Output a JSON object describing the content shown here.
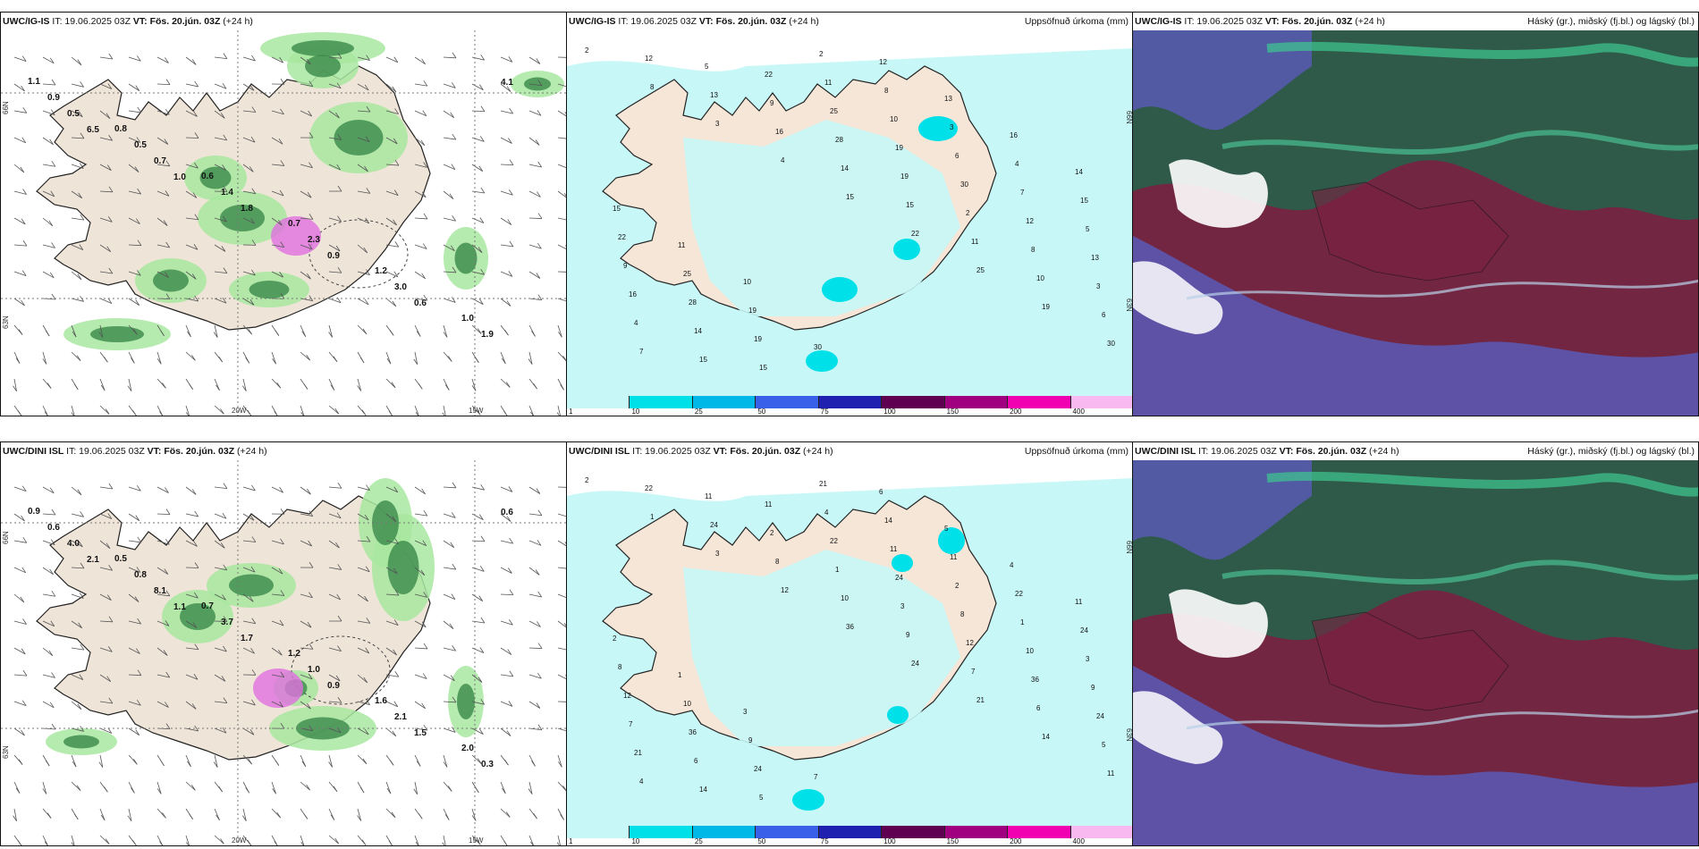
{
  "panels": [
    {
      "model": "UWC/IG-IS",
      "it": "IT: 19.06.2025 03Z",
      "vt": "VT: Fös. 20.jún. 03Z",
      "lead": "(+24 h)",
      "title": "",
      "type": "wind"
    },
    {
      "model": "UWC/IG-IS",
      "it": "IT: 19.06.2025 03Z",
      "vt": "VT: Fös. 20.jún. 03Z",
      "lead": "(+24 h)",
      "title": "Uppsöfnuð úrkoma (mm)",
      "type": "precip"
    },
    {
      "model": "UWC/IG-IS",
      "it": "IT: 19.06.2025 03Z",
      "vt": "VT: Fös. 20.jún. 03Z",
      "lead": "(+24 h)",
      "title": "Háský (gr.), miðský (fj.bl.) og lágský (bl.)",
      "type": "cloud"
    },
    {
      "model": "UWC/DINI ISL",
      "it": "IT: 19.06.2025 03Z",
      "vt": "VT: Fös. 20.jún. 03Z",
      "lead": "(+24 h)",
      "title": "",
      "type": "wind"
    },
    {
      "model": "UWC/DINI ISL",
      "it": "IT: 19.06.2025 03Z",
      "vt": "VT: Fös. 20.jún. 03Z",
      "lead": "(+24 h)",
      "title": "Uppsöfnuð úrkoma (mm)",
      "type": "precip"
    },
    {
      "model": "UWC/DINI ISL",
      "it": "IT: 19.06.2025 03Z",
      "vt": "VT: Fös. 20.jún. 03Z",
      "lead": "(+24 h)",
      "title": "Háský (gr.), miðský (fj.bl.) og lágský (bl.)",
      "type": "cloud"
    }
  ],
  "axis_labels": {
    "lat_top": "66N",
    "lat_bottom": "63N",
    "lon_left": "20W",
    "lon_right": "15W"
  },
  "colorbar": {
    "labels": [
      "1",
      "10",
      "25",
      "50",
      "75",
      "100",
      "150",
      "200",
      "400"
    ],
    "colors": [
      "#c8f7f7",
      "#00e0e8",
      "#00b8e8",
      "#3860e8",
      "#2020b0",
      "#600050",
      "#a00080",
      "#f000b0",
      "#f8b8f0"
    ]
  },
  "precip_values_top": [
    "2",
    "8",
    "3",
    "4",
    "15",
    "22",
    "25",
    "19",
    "30",
    "12",
    "13",
    "16",
    "14",
    "15",
    "11",
    "10",
    "6",
    "7",
    "5",
    "9",
    "28",
    "19"
  ],
  "precip_values_bottom": [
    "2",
    "1",
    "3",
    "12",
    "36",
    "24",
    "21",
    "14",
    "11",
    "22",
    "24",
    "8",
    "10",
    "9",
    "7",
    "6",
    "5",
    "4",
    "11"
  ],
  "wind_values_top": [
    "1.1",
    "0.8",
    "0.6",
    "0.7",
    "1.2",
    "1.0",
    "0.9",
    "0.5",
    "1.4",
    "2.3",
    "3.0",
    "1.9",
    "0.5",
    "0.7",
    "1.8",
    "0.9",
    "0.6",
    "4.1",
    "6.5",
    "1.0"
  ],
  "wind_values_bottom": [
    "0.9",
    "0.5",
    "0.7",
    "1.2",
    "1.6",
    "2.0",
    "0.6",
    "0.8",
    "3.7",
    "1.0",
    "2.1",
    "0.3",
    "4.0",
    "8.1",
    "1.7",
    "0.9",
    "1.5",
    "0.6",
    "2.1",
    "1.1"
  ]
}
